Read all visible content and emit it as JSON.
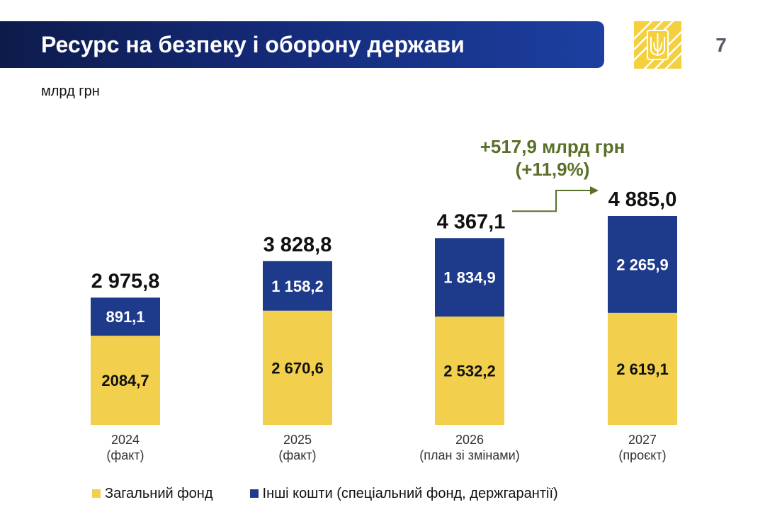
{
  "header": {
    "title": "Ресурс на безпеку і оборону держави",
    "page_number": "7",
    "emblem_icon": "trident-emblem-icon"
  },
  "unit_label": "млрд грн",
  "colors": {
    "general_fund": "#f2cf4c",
    "other_funds": "#1e3a8a",
    "title_bar": "#142a78",
    "annotation": "#5a7029",
    "emblem_bg": "#f4d03f"
  },
  "chart_data": {
    "type": "bar",
    "stacked": true,
    "categories": [
      "2024\n(факт)",
      "2025\n(факт)",
      "2026\n(план зі змінами)",
      "2027\n(проєкт)"
    ],
    "series": [
      {
        "name": "Загальний фонд",
        "values": [
          2084.7,
          2670.6,
          2532.2,
          2619.1
        ],
        "labels": [
          "2084,7",
          "2 670,6",
          "2 532,2",
          "2 619,1"
        ]
      },
      {
        "name": "Інші кошти (спеціальний фонд, держгарантії)",
        "values": [
          891.1,
          1158.2,
          1834.9,
          2265.9
        ],
        "labels": [
          "891,1",
          "1 158,2",
          "1 834,9",
          "2 265,9"
        ]
      }
    ],
    "totals": [
      2975.8,
      3828.8,
      4367.1,
      4885.0
    ],
    "total_labels": [
      "2 975,8",
      "3 828,8",
      "4 367,1",
      "4 885,0"
    ],
    "annotation": {
      "line1": "+517,9 млрд грн",
      "line2": "(+11,9%)",
      "from_category": "2026\n(план зі змінами)",
      "to_category": "2027\n(проєкт)"
    },
    "legend_position": "bottom",
    "grid": false,
    "ylim": [
      0,
      5000
    ]
  }
}
